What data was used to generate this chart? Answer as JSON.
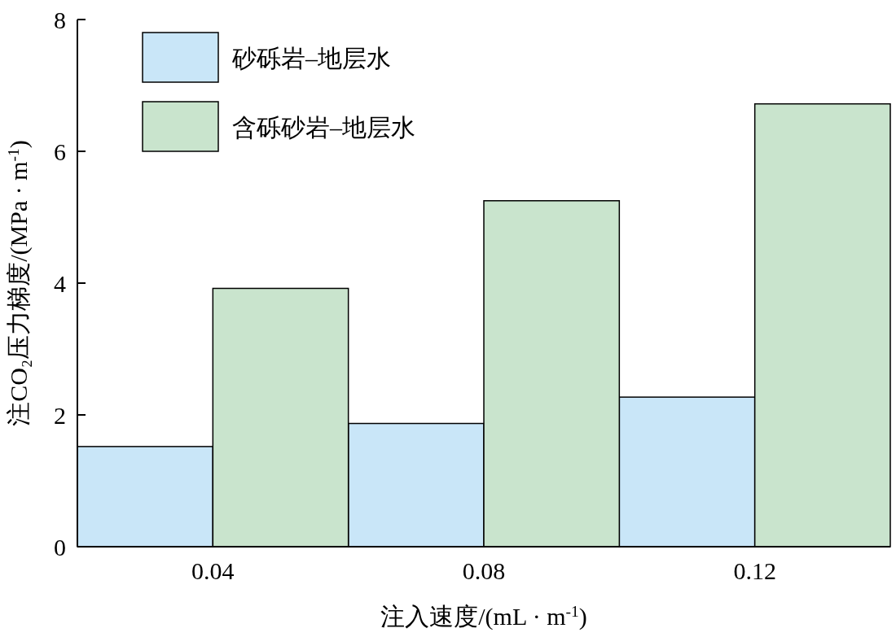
{
  "chart_data": {
    "type": "bar",
    "categories": [
      "0.04",
      "0.08",
      "0.12"
    ],
    "series": [
      {
        "name": "砂砾岩–地层水",
        "color": "#c9e6f8",
        "values": [
          1.52,
          1.87,
          2.27
        ]
      },
      {
        "name": "含砾砂岩–地层水",
        "color": "#c9e4cd",
        "values": [
          3.92,
          5.25,
          6.72
        ]
      }
    ],
    "xlabel": "注入速度/(mL · m$^{-1}$)",
    "ylabel": "注CO₂压力梯度/(MPa · m$^{-1}$)",
    "ylim": [
      0,
      8
    ],
    "yticks": [
      0,
      2,
      4,
      6,
      8
    ],
    "legend": "top left",
    "grid": false
  }
}
